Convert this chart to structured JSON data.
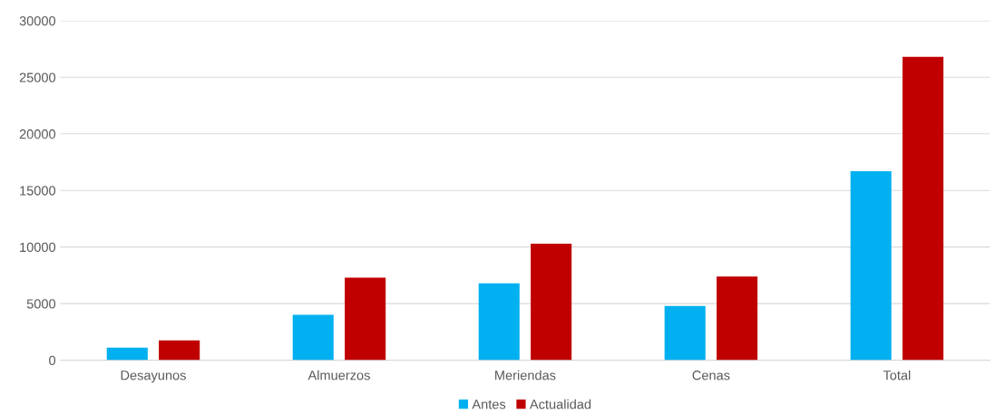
{
  "chart_data": {
    "type": "bar",
    "categories": [
      "Desayunos",
      "Almuerzos",
      "Meriendas",
      "Cenas",
      "Total"
    ],
    "series": [
      {
        "name": "Antes",
        "color": "#00b0f0",
        "values": [
          1100,
          4000,
          6800,
          4800,
          16700
        ]
      },
      {
        "name": "Actualidad",
        "color": "#c00000",
        "values": [
          1750,
          7300,
          10300,
          7400,
          26800
        ]
      }
    ],
    "ylim": [
      0,
      30000
    ],
    "yticks": [
      0,
      5000,
      10000,
      15000,
      20000,
      25000,
      30000
    ],
    "grid": "y",
    "legend": "bottom"
  }
}
